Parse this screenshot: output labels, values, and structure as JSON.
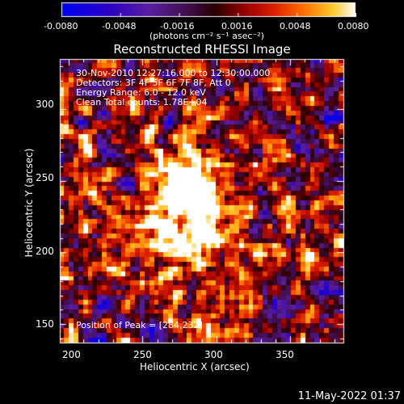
{
  "chart_data": {
    "type": "heatmap",
    "title": "Reconstructed RHESSI Image",
    "xlabel": "Heliocentric X (arcsec)",
    "ylabel": "Heliocentric Y (arcsec)",
    "xlim": [
      194,
      386
    ],
    "ylim": [
      137,
      335
    ],
    "xticks": [
      "200",
      "250",
      "300",
      "350"
    ],
    "xtick_values": [
      200,
      250,
      300,
      350
    ],
    "yticks": [
      "150",
      "200",
      "250",
      "300"
    ],
    "ytick_values": [
      150,
      200,
      250,
      300
    ],
    "colorbar": {
      "ticks": [
        "-0.0080",
        "-0.0048",
        "-0.0016",
        "0.0016",
        "0.0048",
        "0.0080"
      ],
      "range": [
        -0.008,
        0.008
      ],
      "unit": "(photons cm⁻² s⁻¹ asec⁻²)"
    },
    "annotations": {
      "time": "30-Nov-2010 12:27:16.000 to 12:30:00.000",
      "detectors": "Detectors: 3F 4F 5F 6F 7F 8F, Att 0",
      "energy": "Energy Range: 6.0 - 12.0 keV",
      "clean": "Clean     Total counts: 1.78E+04",
      "peak": "Position of Peak = [284,232]"
    },
    "peak": [
      284,
      232
    ],
    "footer": "11-May-2022 01:37"
  }
}
